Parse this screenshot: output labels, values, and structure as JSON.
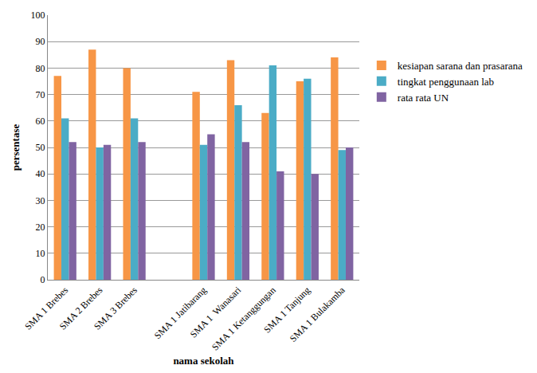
{
  "chart_data": {
    "type": "bar",
    "x_label": "nama sekolah",
    "y_label": "persentase",
    "categories": [
      "SMA 1 Brebes",
      "SMA 2 Brebes",
      "SMA 3 Brebes",
      null,
      "SMA 1 Jatibarang",
      "SMA 1  Wanasari",
      "SMA 1 Ketanggungan",
      "SMA 1 Tanjung",
      "SMA 1 Bulakamba"
    ],
    "series": [
      {
        "name": "kesiapan sarana dan prasarana",
        "color": "#f79646",
        "values": [
          77,
          87,
          80,
          null,
          71,
          83,
          63,
          75,
          84
        ]
      },
      {
        "name": "tingkat penggunaan lab",
        "color": "#4bacc6",
        "values": [
          61,
          50,
          61,
          null,
          51,
          66,
          81,
          76,
          49
        ]
      },
      {
        "name": "rata rata UN",
        "color": "#8064a2",
        "values": [
          52,
          51,
          52,
          null,
          55,
          52,
          41,
          40,
          50
        ]
      }
    ],
    "ylim": [
      0,
      100
    ],
    "yticks": [
      0,
      10,
      20,
      30,
      40,
      50,
      60,
      70,
      80,
      90,
      100
    ],
    "grid": true,
    "legend": "right"
  }
}
